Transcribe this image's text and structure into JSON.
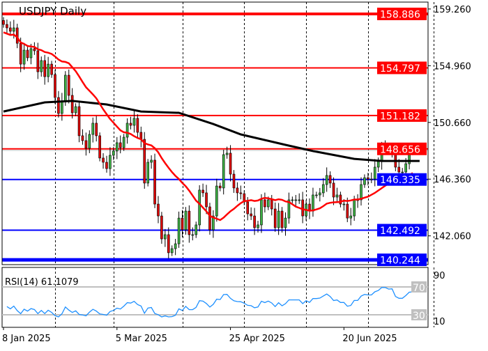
{
  "chart_data": {
    "type": "candlestick",
    "title": "USDJPY Daily",
    "symbol": "USDJPY",
    "timeframe": "Daily",
    "ylim": [
      139.9,
      159.5
    ],
    "y_tick_labels": [
      "159.260",
      "154.960",
      "150.660",
      "146.360",
      "142.060"
    ],
    "y_ticks": [
      159.26,
      154.96,
      150.66,
      146.36,
      142.06
    ],
    "x_tick_labels": [
      {
        "label": "8 Jan 2025",
        "bar": 0
      },
      {
        "label": "5 Mar 2025",
        "bar": 33
      },
      {
        "label": "25 Apr 2025",
        "bar": 66
      },
      {
        "label": "20 Jun 2025",
        "bar": 99
      }
    ],
    "grid_vertical_bars": [
      15,
      32,
      52,
      70,
      88,
      106,
      125
    ],
    "closes": [
      158.09,
      157.83,
      157.57,
      157.83,
      156.66,
      155.08,
      156.14,
      155.56,
      156.25,
      156.09,
      154.5,
      155.35,
      154.13,
      155.08,
      154.29,
      152.55,
      151.34,
      152.29,
      154.24,
      152.71,
      151.39,
      151.86,
      149.65,
      149.28,
      148.7,
      149.75,
      150.6,
      149.65,
      147.96,
      147.64,
      147.16,
      148.17,
      148.49,
      149.12,
      148.75,
      149.54,
      150.6,
      150.44,
      150.97,
      149.91,
      149.38,
      146.06,
      147.64,
      147.8,
      144.47,
      143.57,
      141.83,
      142.15,
      140.78,
      141.09,
      141.46,
      143.41,
      142.52,
      143.94,
      142.15,
      142.15,
      142.89,
      145.53,
      145.32,
      144.26,
      142.52,
      143.57,
      145.84,
      145.69,
      148.22,
      148.33,
      146.74,
      145.69,
      145.32,
      145.26,
      144.63,
      143.73,
      143.57,
      142.68,
      142.89,
      144.79,
      144.26,
      144.79,
      144.1,
      142.68,
      143.94,
      142.68,
      143.41,
      144.79,
      144.79,
      144.79,
      144.79,
      143.57,
      144.47,
      143.94,
      145.16,
      145.16,
      145.32,
      145.95,
      146.64,
      146.06,
      145.0,
      145.16,
      144.47,
      144.47,
      143.41,
      143.57,
      144.79,
      144.79,
      145.95,
      146.47,
      146.37,
      146.37,
      147.27,
      147.69,
      148.75,
      148.75,
      148.49,
      148.59,
      147.27,
      146.9,
      146.9,
      147.53,
      148.43,
      148.49
    ],
    "ma_fast": {
      "period": 20,
      "color": "#ff0000"
    },
    "ma_slow": {
      "color": "#000000",
      "points": [
        [
          0,
          151.49
        ],
        [
          12,
          152.18
        ],
        [
          20,
          152.29
        ],
        [
          30,
          152.02
        ],
        [
          40,
          151.49
        ],
        [
          51,
          151.39
        ],
        [
          61,
          150.54
        ],
        [
          69,
          149.75
        ],
        [
          82,
          148.96
        ],
        [
          90,
          148.49
        ],
        [
          102,
          147.9
        ],
        [
          110,
          147.74
        ],
        [
          121,
          147.74
        ]
      ]
    },
    "levels": [
      {
        "label": "158.886",
        "value": 158.886,
        "color": "#ff0000",
        "weight": "thick"
      },
      {
        "label": "154.797",
        "value": 154.797,
        "color": "#ff0000",
        "weight": "normal"
      },
      {
        "label": "151.182",
        "value": 151.182,
        "color": "#ff0000",
        "weight": "normal"
      },
      {
        "label": "148.656",
        "value": 148.656,
        "color": "#ff0000",
        "weight": "normal"
      },
      {
        "label": "146.335",
        "value": 146.335,
        "color": "#0000ff",
        "weight": "normal"
      },
      {
        "label": "142.492",
        "value": 142.492,
        "color": "#0000ff",
        "weight": "normal"
      },
      {
        "label": "140.244",
        "value": 140.244,
        "color": "#0000ff",
        "weight": "thick"
      }
    ],
    "colors": {
      "bull": "#3cb043",
      "bear": "#e00000",
      "rsi": "#1e90ff"
    },
    "rsi": {
      "label": "RSI(14) 61.1079",
      "period": 14,
      "value": 61.1079,
      "levels": [
        {
          "label": "70",
          "value": 70
        },
        {
          "label": "30",
          "value": 30
        }
      ],
      "axis_labels": [
        {
          "label": "90",
          "value": 90
        },
        {
          "label": "10",
          "value": 10
        }
      ]
    }
  }
}
